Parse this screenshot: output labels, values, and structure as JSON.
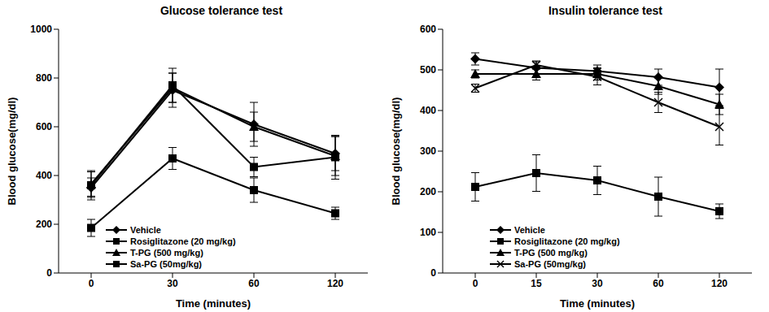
{
  "chart_data": [
    {
      "type": "line",
      "title": "Glucose tolerance test",
      "x_label": "Time (minutes)",
      "y_label": "Blood glucose(mg/dl)",
      "categories": [
        0,
        30,
        60,
        120
      ],
      "ylim": [
        0,
        1000
      ],
      "yticks": [
        0,
        200,
        400,
        600,
        800,
        1000
      ],
      "grid": false,
      "legend": "lower left",
      "series": [
        {
          "name": "Vehicle",
          "color": "#000000",
          "marker": "diamond",
          "values": [
            350,
            750,
            610,
            490
          ],
          "errors": [
            40,
            70,
            90,
            70
          ]
        },
        {
          "name": "Rosiglitazone (20 mg/kg)",
          "color": "#000000",
          "marker": "square",
          "values": [
            185,
            470,
            340,
            245
          ],
          "errors": [
            35,
            45,
            50,
            25
          ]
        },
        {
          "name": "T-PG (500 mg/kg)",
          "color": "#000000",
          "marker": "triangle",
          "values": [
            365,
            760,
            600,
            480
          ],
          "errors": [
            50,
            60,
            60,
            80
          ]
        },
        {
          "name": "Sa-PG (50mg/kg)",
          "color": "#000000",
          "marker": "square",
          "values": [
            360,
            770,
            435,
            475
          ],
          "errors": [
            60,
            70,
            40,
            90
          ]
        }
      ]
    },
    {
      "type": "line",
      "title": "Insulin tolerance test",
      "x_label": "Time (minutes)",
      "y_label": "Blood glucose(mg/dl)",
      "categories": [
        0,
        15,
        30,
        60,
        120
      ],
      "ylim": [
        0,
        600
      ],
      "yticks": [
        0,
        100,
        200,
        300,
        400,
        500,
        600
      ],
      "grid": false,
      "legend": "lower left",
      "series": [
        {
          "name": "Vehicle",
          "color": "#000000",
          "marker": "diamond",
          "values": [
            527,
            505,
            497,
            482,
            457
          ],
          "errors": [
            15,
            15,
            15,
            20,
            45
          ]
        },
        {
          "name": "Rosiglitazone (20 mg/kg)",
          "color": "#000000",
          "marker": "square",
          "values": [
            212,
            246,
            228,
            188,
            152
          ],
          "errors": [
            35,
            45,
            35,
            48,
            18
          ]
        },
        {
          "name": "T-PG (500 mg/kg)",
          "color": "#000000",
          "marker": "triangle",
          "values": [
            490,
            490,
            490,
            460,
            415
          ],
          "errors": [
            10,
            15,
            15,
            20,
            25
          ]
        },
        {
          "name": "Sa-PG (50mg/kg)",
          "color": "#000000",
          "marker": "x",
          "values": [
            455,
            512,
            483,
            420,
            360
          ],
          "errors": [
            10,
            10,
            20,
            25,
            45
          ]
        }
      ]
    }
  ]
}
